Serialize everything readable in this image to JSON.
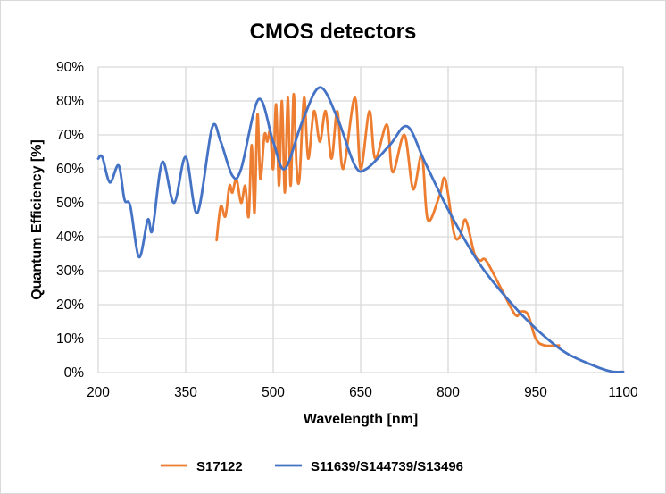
{
  "chart_data": {
    "type": "line",
    "title": "CMOS detectors",
    "xlabel": "Wavelength [nm]",
    "ylabel": "Quantum Efficiency [%]",
    "xlim": [
      200,
      1100
    ],
    "ylim": [
      0,
      90
    ],
    "xticks": [
      200,
      350,
      500,
      650,
      800,
      950,
      1100
    ],
    "yticks": [
      0,
      10,
      20,
      30,
      40,
      50,
      60,
      70,
      80,
      90
    ],
    "ytick_labels": [
      "0%",
      "10%",
      "20%",
      "30%",
      "40%",
      "50%",
      "60%",
      "70%",
      "80%",
      "90%"
    ],
    "grid": true,
    "legend_position": "bottom",
    "series": [
      {
        "name": "S17122",
        "color": "#ED7D31",
        "x": [
          403,
          410,
          418,
          425,
          430,
          437,
          445,
          452,
          458,
          463,
          468,
          473,
          478,
          485,
          490,
          495,
          500,
          505,
          510,
          515,
          520,
          525,
          530,
          535,
          540,
          545,
          553,
          560,
          570,
          580,
          590,
          600,
          610,
          620,
          640,
          650,
          665,
          675,
          695,
          705,
          725,
          740,
          755,
          765,
          785,
          795,
          810,
          820,
          830,
          845,
          855,
          865,
          890,
          915,
          925,
          937,
          950,
          965,
          990
        ],
        "y": [
          39,
          49,
          46,
          55,
          53,
          57,
          50,
          55,
          46,
          67,
          47,
          76,
          57,
          70,
          68,
          71,
          60,
          79,
          55,
          80,
          53,
          81,
          55,
          82,
          61,
          57,
          81,
          63,
          77,
          68,
          77,
          63,
          77,
          60,
          81,
          60,
          77,
          63,
          73,
          59,
          70,
          54,
          64,
          45,
          52,
          57,
          41,
          40,
          45,
          35,
          33,
          33,
          25,
          17,
          18,
          17,
          10,
          8,
          8
        ]
      },
      {
        "name": "S11639/S144739/S13496",
        "color": "#4472C4",
        "x": [
          200,
          207,
          220,
          235,
          245,
          255,
          270,
          285,
          293,
          310,
          330,
          350,
          370,
          395,
          410,
          430,
          445,
          475,
          500,
          520,
          550,
          580,
          610,
          640,
          660,
          700,
          730,
          760,
          800,
          850,
          900,
          950,
          1000,
          1050,
          1080,
          1100
        ],
        "y": [
          63,
          63.5,
          56,
          61,
          51,
          49,
          34,
          45,
          42,
          62,
          50,
          63.5,
          47,
          72,
          68,
          58,
          60,
          80.5,
          68,
          60,
          74,
          84,
          75,
          61,
          60,
          67,
          72.5,
          62,
          48,
          33,
          22,
          13,
          6,
          2,
          0.3,
          0.2
        ]
      }
    ]
  }
}
